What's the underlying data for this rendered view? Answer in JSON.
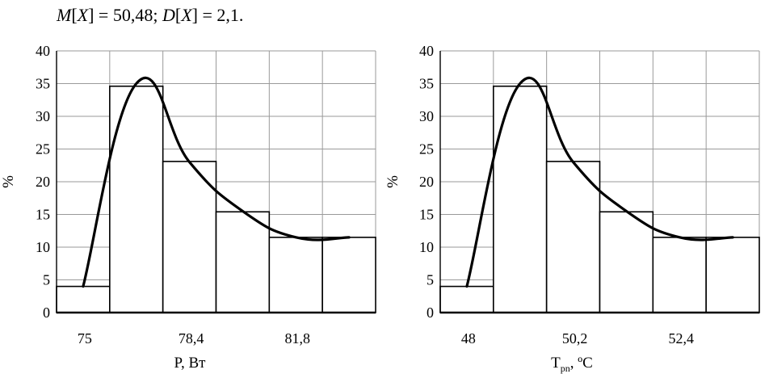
{
  "formula": {
    "m_symbol": "M",
    "x_symbol": "X",
    "m_value": "50,48",
    "d_symbol": "D",
    "d_value": "2,1"
  },
  "chart_data": [
    {
      "type": "bar",
      "ylabel": "%",
      "xlabel": "P, Вт",
      "ylim": [
        0,
        40
      ],
      "yticks": [
        "0",
        "5",
        "10",
        "15",
        "20",
        "25",
        "30",
        "35",
        "40"
      ],
      "xtick_labels": [
        "75",
        "78,4",
        "81,8"
      ],
      "bin_edges": [
        74.15,
        75.85,
        77.55,
        79.25,
        80.95,
        82.65,
        84.35
      ],
      "values": [
        4,
        34.6,
        23.1,
        15.4,
        11.5,
        11.5
      ],
      "curve": {
        "x": [
          75,
          76.7,
          78.4,
          80.1,
          81.8,
          83.5
        ],
        "y": [
          4,
          35,
          23,
          15.5,
          11.5,
          11.5
        ]
      },
      "grid": true
    },
    {
      "type": "bar",
      "ylabel": "%",
      "xlabel": "T",
      "xlabel_sub": "pn",
      "xlabel_suffix": ", ºC",
      "ylim": [
        0,
        40
      ],
      "yticks": [
        "0",
        "5",
        "10",
        "15",
        "20",
        "25",
        "30",
        "35",
        "40"
      ],
      "xtick_labels": [
        "48",
        "50,2",
        "52,4"
      ],
      "bin_edges": [
        47.45,
        48.55,
        49.65,
        50.75,
        51.85,
        52.95,
        54.05
      ],
      "values": [
        4,
        34.6,
        23.1,
        15.4,
        11.5,
        11.5
      ],
      "curve": {
        "x": [
          48,
          49.1,
          50.2,
          51.3,
          52.4,
          53.5
        ],
        "y": [
          4,
          35,
          23,
          15.5,
          11.5,
          11.5
        ]
      },
      "grid": true
    }
  ]
}
